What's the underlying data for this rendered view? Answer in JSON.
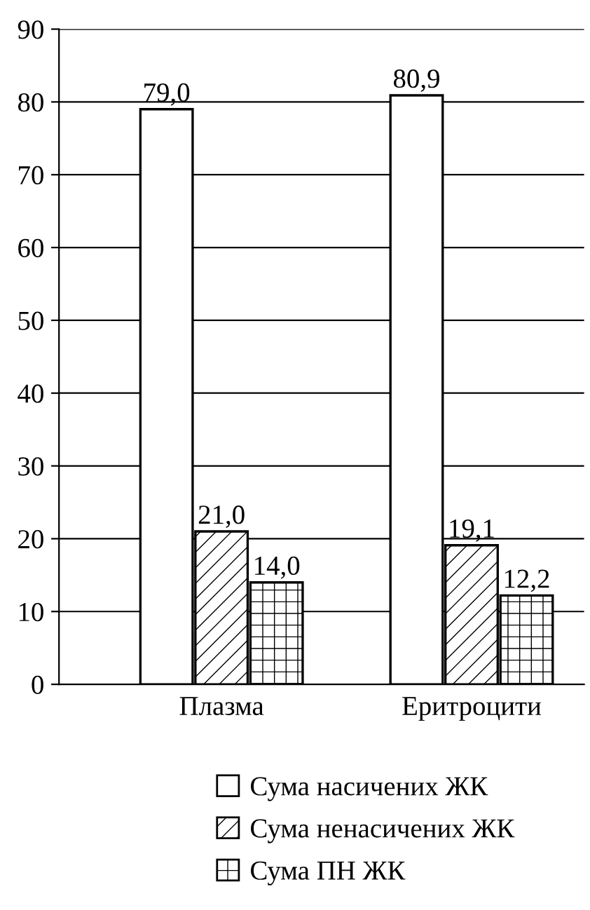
{
  "chart_data": {
    "type": "bar",
    "categories": [
      "Плазма",
      "Еритроцити"
    ],
    "series": [
      {
        "name": "Сума насичених ЖК",
        "color": "#ffffff",
        "values": [
          79.0,
          80.9
        ],
        "value_labels": [
          "79,0",
          "80,9"
        ]
      },
      {
        "name": "Сума ненасичених ЖК",
        "color": "#000000",
        "values": [
          21.0,
          19.1
        ],
        "value_labels": [
          "21,0",
          "19,1"
        ]
      },
      {
        "name": "Сума ПН ЖК",
        "color": "#000000",
        "values": [
          14.0,
          12.2
        ],
        "value_labels": [
          "14,0",
          "12,2"
        ]
      }
    ],
    "ylim": [
      0,
      90
    ],
    "yticks": [
      0,
      10,
      20,
      30,
      40,
      50,
      60,
      70,
      80,
      90
    ],
    "grid": "y",
    "legend": "bottom"
  }
}
